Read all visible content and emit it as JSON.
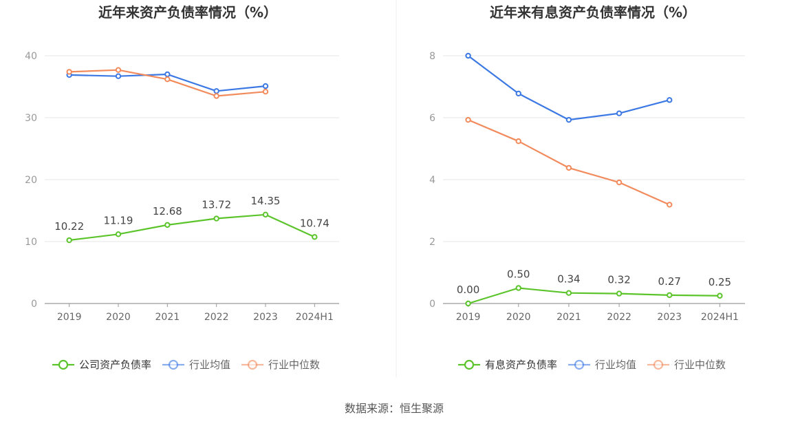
{
  "source": "数据来源：恒生聚源",
  "chart_data": [
    {
      "type": "line",
      "title": "近年来资产负债率情况（%）",
      "categories": [
        "2019",
        "2020",
        "2021",
        "2022",
        "2023",
        "2024H1"
      ],
      "ylim": [
        0,
        40
      ],
      "yticks": [
        "0",
        "10",
        "20",
        "30",
        "40"
      ],
      "grid": true,
      "legend_position": "bottom",
      "series": [
        {
          "name": "公司资产负债率",
          "color": "#5cc42b",
          "values": [
            10.22,
            11.19,
            12.68,
            13.72,
            14.35,
            10.74
          ],
          "labels": [
            "10.22",
            "11.19",
            "12.68",
            "13.72",
            "14.35",
            "10.74"
          ]
        },
        {
          "name": "行业均值",
          "color": "#3b78e3",
          "values": [
            36.9,
            36.7,
            37.0,
            34.3,
            35.1,
            null
          ]
        },
        {
          "name": "行业中位数",
          "color": "#f28a5c",
          "values": [
            37.4,
            37.7,
            36.2,
            33.5,
            34.2,
            null
          ]
        }
      ]
    },
    {
      "type": "line",
      "title": "近年来有息资产负债率情况（%）",
      "categories": [
        "2019",
        "2020",
        "2021",
        "2022",
        "2023",
        "2024H1"
      ],
      "ylim": [
        0,
        8
      ],
      "yticks": [
        "0",
        "2",
        "4",
        "6",
        "8"
      ],
      "grid": true,
      "legend_position": "bottom",
      "series": [
        {
          "name": "有息资产负债率",
          "color": "#5cc42b",
          "values": [
            0.0,
            0.5,
            0.34,
            0.32,
            0.27,
            0.25
          ],
          "labels": [
            "0.00",
            "0.50",
            "0.34",
            "0.32",
            "0.27",
            "0.25"
          ]
        },
        {
          "name": "行业均值",
          "color": "#3b78e3",
          "values": [
            8.0,
            6.78,
            5.93,
            6.14,
            6.57,
            null
          ]
        },
        {
          "name": "行业中位数",
          "color": "#f28a5c",
          "values": [
            5.93,
            5.24,
            4.38,
            3.91,
            3.19,
            null
          ]
        }
      ]
    }
  ]
}
